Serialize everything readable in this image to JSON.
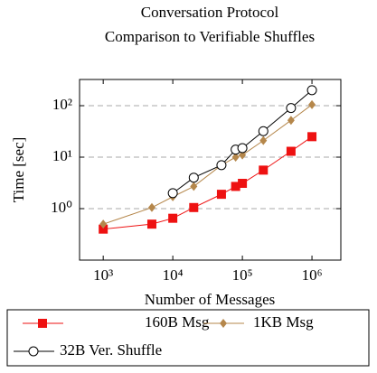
{
  "chart_data": {
    "type": "line",
    "title": [
      "Conversation Protocol",
      "Comparison to Verifiable Shuffles"
    ],
    "x_label": "Number of Messages",
    "y_label": "Time [sec]",
    "log_x": true,
    "log_y": true,
    "grid": true,
    "xlim": [
      457,
      2600000
    ],
    "ylim": [
      0.1,
      323
    ],
    "xticks": [
      {
        "value": 1000,
        "label": "10³"
      },
      {
        "value": 10000,
        "label": "10⁴"
      },
      {
        "value": 100000,
        "label": "10⁵"
      },
      {
        "value": 1000000,
        "label": "10⁶"
      }
    ],
    "yticks": [
      {
        "value": 1,
        "label": "10⁰"
      },
      {
        "value": 10,
        "label": "10¹"
      },
      {
        "value": 100,
        "label": "10²"
      }
    ],
    "legend": "below",
    "series": [
      {
        "name": "160B Msg",
        "color": "#ee1111",
        "marker": "square",
        "x": [
          1000,
          5000,
          10000,
          20000,
          50000,
          80000,
          100000,
          200000,
          500000,
          1000000
        ],
        "values": [
          0.4,
          0.5,
          0.65,
          1.05,
          1.9,
          2.7,
          3.1,
          5.6,
          13,
          25
        ]
      },
      {
        "name": "1KB Msg",
        "color": "#b5874b",
        "marker": "diamond",
        "x": [
          1000,
          5000,
          10000,
          20000,
          50000,
          80000,
          100000,
          200000,
          500000,
          1000000
        ],
        "values": [
          0.5,
          1.05,
          1.7,
          2.7,
          7,
          10,
          11,
          21,
          52,
          105
        ]
      },
      {
        "name": "32B Ver. Shuffle",
        "color": "#000000",
        "marker": "circle",
        "x": [
          10000,
          20000,
          50000,
          80000,
          100000,
          200000,
          500000,
          1000000
        ],
        "values": [
          2,
          4,
          7,
          14,
          15,
          32,
          90,
          200
        ]
      }
    ]
  }
}
